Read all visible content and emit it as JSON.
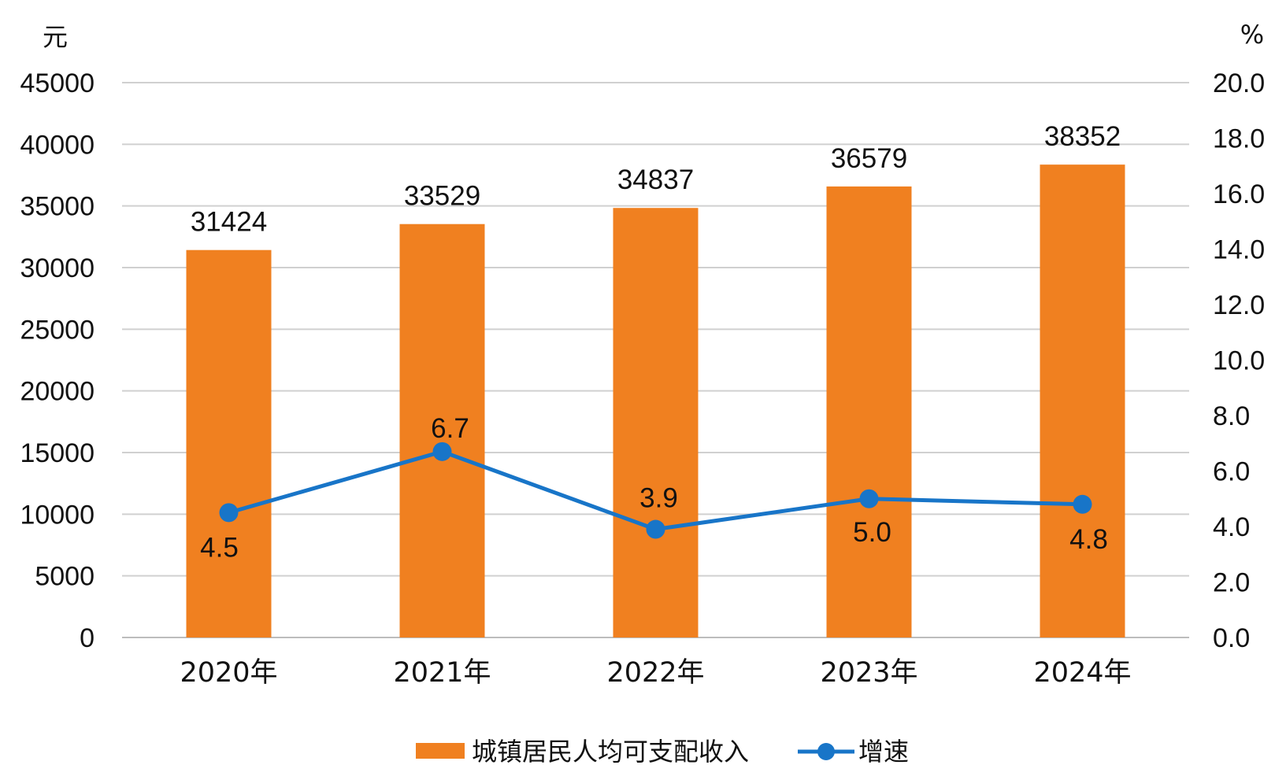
{
  "chart_data": {
    "type": "bar",
    "categories": [
      "2020年",
      "2021年",
      "2022年",
      "2023年",
      "2024年"
    ],
    "series": [
      {
        "name": "城镇居民人均可支配收入",
        "type": "bar",
        "axis": "left",
        "color": "#F08020",
        "values": [
          31424,
          33529,
          34837,
          36579,
          38352
        ],
        "labels": [
          "31424",
          "33529",
          "34837",
          "36579",
          "38352"
        ]
      },
      {
        "name": "增速",
        "type": "line",
        "axis": "right",
        "color": "#1875C8",
        "values": [
          4.5,
          6.7,
          3.9,
          5.0,
          4.8
        ],
        "labels": [
          "4.5",
          "6.7",
          "3.9",
          "5.0",
          "4.8"
        ]
      }
    ],
    "y_left": {
      "unit": "元",
      "min": 0,
      "max": 45000,
      "ticks": [
        "0",
        "5000",
        "10000",
        "15000",
        "20000",
        "25000",
        "30000",
        "35000",
        "40000",
        "45000"
      ]
    },
    "y_right": {
      "unit": "%",
      "min": 0,
      "max": 20,
      "ticks": [
        "0.0",
        "2.0",
        "4.0",
        "6.0",
        "8.0",
        "10.0",
        "12.0",
        "14.0",
        "16.0",
        "18.0",
        "20.0"
      ]
    },
    "grid": true,
    "legend_position": "bottom-center"
  }
}
